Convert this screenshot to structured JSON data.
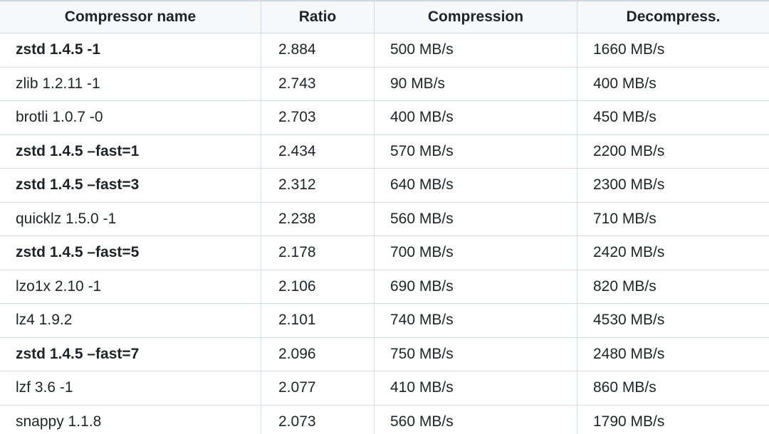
{
  "table": {
    "headers": [
      "Compressor name",
      "Ratio",
      "Compression",
      "Decompress."
    ],
    "rows": [
      {
        "name": "zstd 1.4.5 -1",
        "ratio": "2.884",
        "compression": "500 MB/s",
        "decompress": "1660 MB/s",
        "bold": true
      },
      {
        "name": "zlib 1.2.11 -1",
        "ratio": "2.743",
        "compression": "90 MB/s",
        "decompress": "400 MB/s",
        "bold": false
      },
      {
        "name": "brotli 1.0.7 -0",
        "ratio": "2.703",
        "compression": "400 MB/s",
        "decompress": "450 MB/s",
        "bold": false
      },
      {
        "name": "zstd 1.4.5 –fast=1",
        "ratio": "2.434",
        "compression": "570 MB/s",
        "decompress": "2200 MB/s",
        "bold": true
      },
      {
        "name": "zstd 1.4.5 –fast=3",
        "ratio": "2.312",
        "compression": "640 MB/s",
        "decompress": "2300 MB/s",
        "bold": true
      },
      {
        "name": "quicklz 1.5.0 -1",
        "ratio": "2.238",
        "compression": "560 MB/s",
        "decompress": "710 MB/s",
        "bold": false
      },
      {
        "name": "zstd 1.4.5 –fast=5",
        "ratio": "2.178",
        "compression": "700 MB/s",
        "decompress": "2420 MB/s",
        "bold": true
      },
      {
        "name": "lzo1x 2.10 -1",
        "ratio": "2.106",
        "compression": "690 MB/s",
        "decompress": "820 MB/s",
        "bold": false
      },
      {
        "name": "lz4 1.9.2",
        "ratio": "2.101",
        "compression": "740 MB/s",
        "decompress": "4530 MB/s",
        "bold": false
      },
      {
        "name": "zstd 1.4.5 –fast=7",
        "ratio": "2.096",
        "compression": "750 MB/s",
        "decompress": "2480 MB/s",
        "bold": true
      },
      {
        "name": "lzf 3.6 -1",
        "ratio": "2.077",
        "compression": "410 MB/s",
        "decompress": "860 MB/s",
        "bold": false
      },
      {
        "name": "snappy 1.1.8",
        "ratio": "2.073",
        "compression": "560 MB/s",
        "decompress": "1790 MB/s",
        "bold": false
      }
    ]
  }
}
